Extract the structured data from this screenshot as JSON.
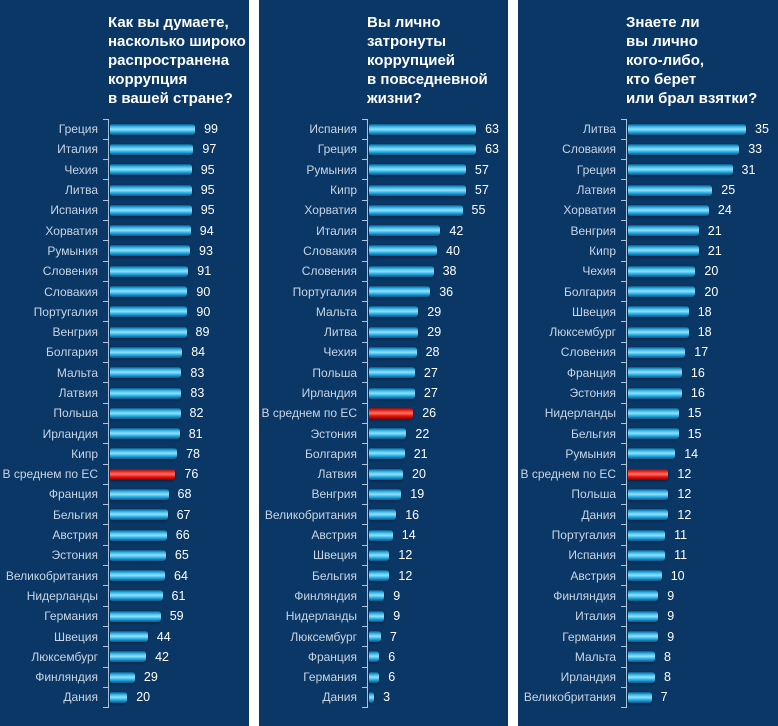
{
  "colors": {
    "panel_background": "#0a3765",
    "separator": "#ffffff",
    "bar_blue": "#2aaade",
    "eu_average_red": "#e60000",
    "country_label": "#c9d5e3",
    "value_label": "#ffffff",
    "axis": "#afc4d8"
  },
  "eu_average_label": "В среднем по ЕС",
  "chart_data": [
    {
      "type": "bar",
      "orientation": "horizontal",
      "title": "Как вы думаете,\nнасколько широко\nраспространена\nкоррупция\nв вашей стране?",
      "xlim": [
        0,
        100
      ],
      "highlight_index": 17,
      "categories": [
        "Греция",
        "Италия",
        "Чехия",
        "Литва",
        "Испания",
        "Хорватия",
        "Румыния",
        "Словения",
        "Словакия",
        "Португалия",
        "Венгрия",
        "Болгария",
        "Мальта",
        "Латвия",
        "Польша",
        "Ирландия",
        "Кипр",
        "В среднем по ЕС",
        "Франция",
        "Бельгия",
        "Австрия",
        "Эстония",
        "Великобритания",
        "Нидерланды",
        "Германия",
        "Швеция",
        "Люксембург",
        "Финляндия",
        "Дания"
      ],
      "values": [
        99,
        97,
        95,
        95,
        95,
        94,
        93,
        91,
        90,
        90,
        89,
        84,
        83,
        83,
        82,
        81,
        78,
        76,
        68,
        67,
        66,
        65,
        64,
        61,
        59,
        44,
        42,
        29,
        20
      ]
    },
    {
      "type": "bar",
      "orientation": "horizontal",
      "title": "Вы лично\nзатронуты\nкоррупцией\nв повседневной\nжизни?",
      "xlim": [
        0,
        65
      ],
      "highlight_index": 14,
      "categories": [
        "Испания",
        "Греция",
        "Румыния",
        "Кипр",
        "Хорватия",
        "Италия",
        "Словакия",
        "Словения",
        "Португалия",
        "Мальта",
        "Литва",
        "Чехия",
        "Польша",
        "Ирландия",
        "В среднем по ЕС",
        "Эстония",
        "Болгария",
        "Латвия",
        "Венгрия",
        "Великобритания",
        "Австрия",
        "Швеция",
        "Бельгия",
        "Финляндия",
        "Нидерланды",
        "Люксембург",
        "Франция",
        "Германия",
        "Дания"
      ],
      "values": [
        63,
        63,
        57,
        57,
        55,
        42,
        40,
        38,
        36,
        29,
        29,
        28,
        27,
        27,
        26,
        22,
        21,
        20,
        19,
        16,
        14,
        12,
        12,
        9,
        9,
        7,
        6,
        6,
        3
      ]
    },
    {
      "type": "bar",
      "orientation": "horizontal",
      "title": "Знаете ли\nвы лично\nкого-либо,\nкто берет\nили брал взятки?",
      "xlim": [
        0,
        36
      ],
      "highlight_index": 17,
      "categories": [
        "Литва",
        "Словакия",
        "Греция",
        "Латвия",
        "Хорватия",
        "Венгрия",
        "Кипр",
        "Чехия",
        "Болгария",
        "Швеция",
        "Люксембург",
        "Словения",
        "Франция",
        "Эстония",
        "Нидерланды",
        "Бельгия",
        "Румыния",
        "В среднем по ЕС",
        "Польша",
        "Дания",
        "Португалия",
        "Испания",
        "Австрия",
        "Финляндия",
        "Италия",
        "Германия",
        "Мальта",
        "Ирландия",
        "Великобритания"
      ],
      "values": [
        35,
        33,
        31,
        25,
        24,
        21,
        21,
        20,
        20,
        18,
        18,
        17,
        16,
        16,
        15,
        15,
        14,
        12,
        12,
        12,
        11,
        11,
        10,
        9,
        9,
        9,
        8,
        8,
        7
      ]
    }
  ]
}
